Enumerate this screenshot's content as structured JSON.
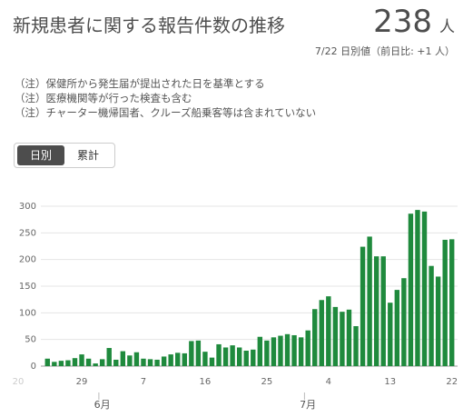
{
  "chart_data": {
    "type": "bar",
    "title": "新規患者に関する報告件数の推移",
    "total": "238",
    "total_unit": "人",
    "subtitle": "7/22 日別値（前日比: +1 人）",
    "notes": [
      "（注）保健所から発生届が提出された日を基準とする",
      "（注）医療機関等が行った検査も含む",
      "（注）チャーター機帰国者、クルーズ船乗客等は含まれていない"
    ],
    "toggle": [
      "日別",
      "累計"
    ],
    "overflow_label": "20",
    "categories": [
      null,
      null,
      null,
      null,
      null,
      "29",
      null,
      null,
      null,
      null,
      null,
      null,
      null,
      null,
      "7",
      null,
      null,
      null,
      null,
      null,
      null,
      null,
      null,
      "16",
      null,
      null,
      null,
      null,
      null,
      null,
      null,
      null,
      "25",
      null,
      null,
      null,
      null,
      null,
      null,
      null,
      null,
      "4",
      null,
      null,
      null,
      null,
      null,
      null,
      null,
      null,
      "13",
      null,
      null,
      null,
      null,
      null,
      null,
      null,
      null,
      "22"
    ],
    "month_categories": [
      null,
      null,
      null,
      null,
      null,
      null,
      null,
      null,
      "6月",
      null,
      null,
      null,
      null,
      null,
      null,
      null,
      null,
      null,
      null,
      null,
      null,
      null,
      null,
      null,
      null,
      null,
      null,
      null,
      null,
      null,
      null,
      null,
      null,
      null,
      null,
      null,
      null,
      null,
      "7月",
      null,
      null,
      null,
      null,
      null,
      null,
      null,
      null,
      null,
      null,
      null,
      null,
      null,
      null,
      null,
      null,
      null,
      null,
      null,
      null,
      null
    ],
    "values": [
      14,
      8,
      10,
      11,
      15,
      22,
      14,
      5,
      13,
      34,
      12,
      28,
      20,
      26,
      14,
      13,
      12,
      18,
      22,
      25,
      24,
      47,
      48,
      27,
      16,
      41,
      35,
      39,
      35,
      29,
      31,
      55,
      48,
      54,
      57,
      60,
      58,
      54,
      67,
      107,
      124,
      131,
      111,
      102,
      106,
      75,
      224,
      243,
      206,
      206,
      119,
      143,
      165,
      286,
      293,
      290,
      188,
      168,
      237,
      238
    ],
    "color": "#1f8a3d",
    "ylim": [
      0,
      300
    ],
    "yticks": [
      0,
      50,
      100,
      150,
      200,
      250,
      300
    ],
    "grid": true
  }
}
